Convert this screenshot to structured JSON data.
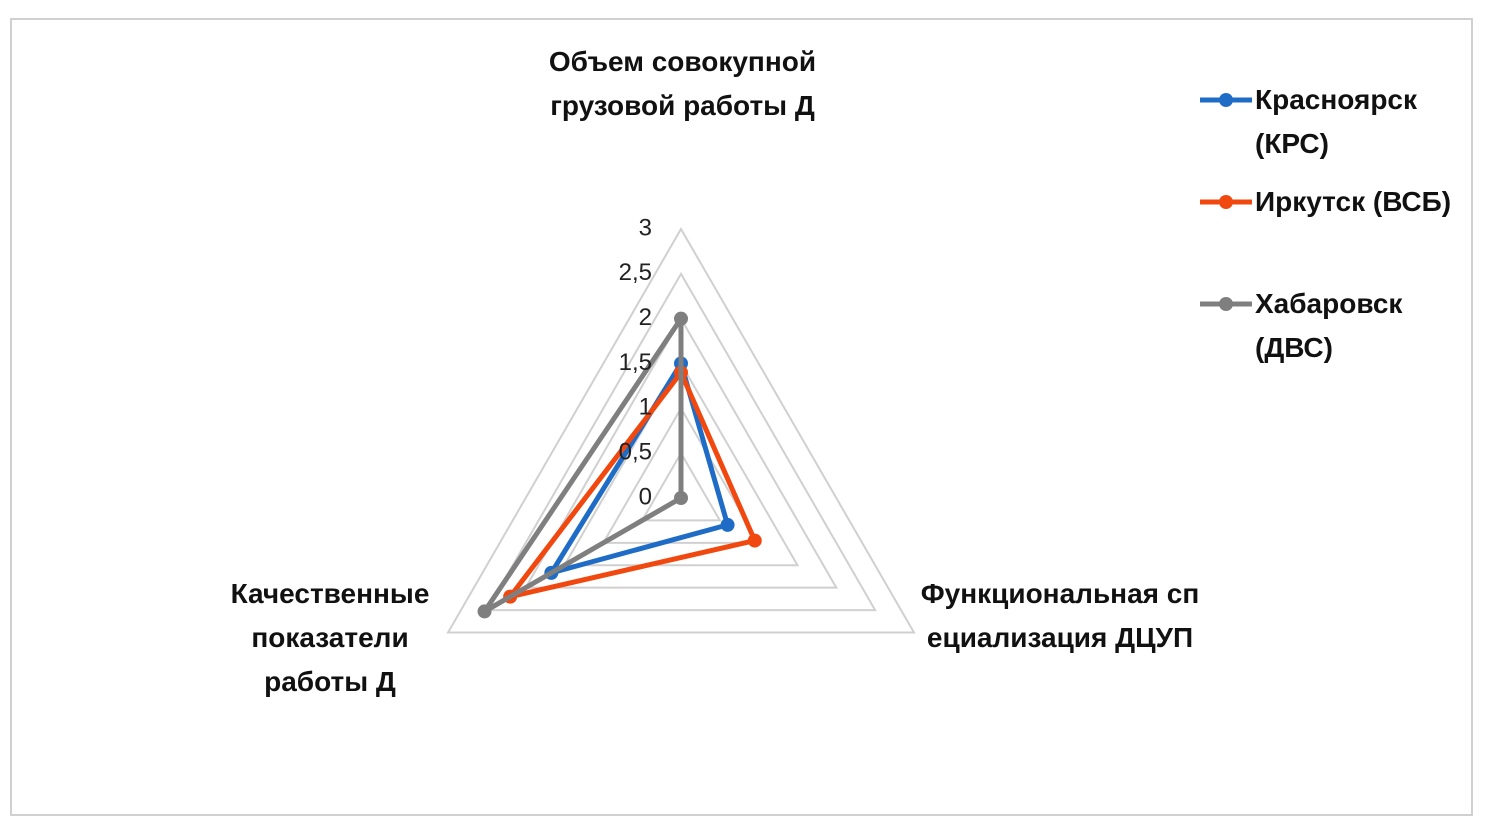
{
  "chart_data": {
    "type": "radar",
    "categories": [
      "Объем совокупной грузовой работы Д",
      "Функциональная специализация ДЦУП",
      "Качественные показатели работы Д"
    ],
    "series": [
      {
        "name": "Красноярск (КРС)",
        "color": "#1f6cc6",
        "values": [
          1.5,
          0.6,
          1.67
        ]
      },
      {
        "name": "Иркутск (ВСБ)",
        "color": "#f0480f",
        "values": [
          1.4,
          0.95,
          2.2
        ]
      },
      {
        "name": "Хабаровск (ДВС)",
        "color": "#7f7f7f",
        "values": [
          2,
          0,
          2.53
        ]
      }
    ],
    "ylim": [
      0,
      3
    ],
    "yticks": [
      0,
      {
        "value": 0.5,
        "label": "0,5"
      },
      1,
      {
        "value": 1.5,
        "label": "1,5"
      },
      2,
      {
        "value": 2.5,
        "label": "2,5"
      },
      3
    ],
    "grid": true,
    "legend": "right"
  }
}
